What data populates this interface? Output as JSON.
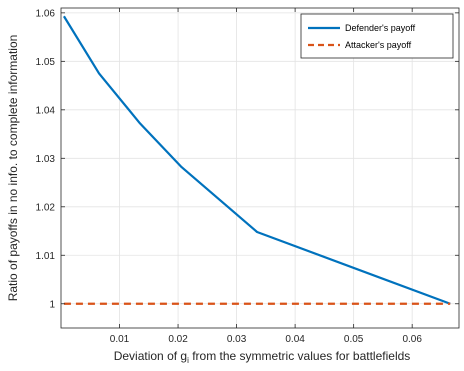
{
  "chart_data": {
    "type": "line",
    "xlabel_main": "Deviation of g",
    "xlabel_sub": "i",
    "xlabel_rest": " from the symmetric values for battlefields",
    "ylabel": "Ratio of payoffs in no info. to complete information",
    "xlim": [
      0,
      0.068
    ],
    "ylim": [
      0.995,
      1.061
    ],
    "xticks": [
      0.01,
      0.02,
      0.03,
      0.04,
      0.05,
      0.06
    ],
    "xtick_labels": [
      "0.01",
      "0.02",
      "0.03",
      "0.04",
      "0.05",
      "0.06"
    ],
    "yticks": [
      1.0,
      1.01,
      1.02,
      1.03,
      1.04,
      1.05,
      1.06
    ],
    "ytick_labels": [
      "1",
      "1.01",
      "1.02",
      "1.03",
      "1.04",
      "1.05",
      "1.06"
    ],
    "grid": true,
    "legend_position": "top-right",
    "series": [
      {
        "name": "Defender's payoff",
        "color": "#0072BD",
        "style": "solid",
        "x": [
          0.0005,
          0.0065,
          0.0135,
          0.0205,
          0.0335,
          0.0665
        ],
        "y": [
          1.0593,
          1.0475,
          1.0372,
          1.0283,
          1.0148,
          1.0
        ]
      },
      {
        "name": "Attacker's payoff",
        "color": "#D95319",
        "style": "dashed",
        "x": [
          0.0005,
          0.0665
        ],
        "y": [
          1.0,
          1.0
        ]
      }
    ]
  }
}
